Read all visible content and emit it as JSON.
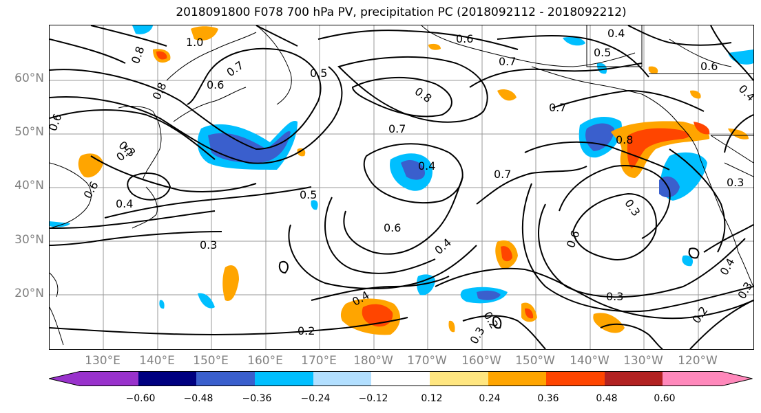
{
  "title": "2018091800 F078 700 hPa PV, precipitation PC (2018092112 - 2018092212)",
  "lat_labels": [
    "60°N",
    "50°N",
    "40°N",
    "30°N",
    "20°N"
  ],
  "lon_labels": [
    "130°E",
    "140°E",
    "150°E",
    "160°E",
    "170°E",
    "180°W",
    "170°W",
    "160°W",
    "150°W",
    "140°W",
    "130°W",
    "120°W"
  ],
  "contour_labels": [
    "1.0",
    "0.8",
    "0.8",
    "0.6",
    "0.7",
    "0.5",
    "0.6",
    "0.7",
    "0.8",
    "0.7",
    "0.6",
    "0.5",
    "0.4",
    "0.4",
    "0.6",
    "0.4",
    "0.5",
    "0.7",
    "0.3",
    "0.3",
    "0.5",
    "0.7",
    "0.4",
    "0.6",
    "0.8",
    "0.6",
    "0.3",
    "0.6",
    "0.4",
    "0.2",
    "0.2",
    "0.3",
    "0.3",
    "0.4",
    "0.3",
    "0.2",
    "0.4",
    "0.3"
  ],
  "colorbar": {
    "ticks": [
      "−0.60",
      "−0.48",
      "−0.36",
      "−0.24",
      "−0.12",
      "0.12",
      "0.24",
      "0.36",
      "0.48",
      "0.60"
    ],
    "colors": [
      "#9932cc",
      "#000080",
      "#3a5fcd",
      "#00bfff",
      "#b2dfff",
      "#ffffff",
      "#ffe680",
      "#ffa500",
      "#ff4500",
      "#b22222",
      "#ff88bb"
    ]
  }
}
